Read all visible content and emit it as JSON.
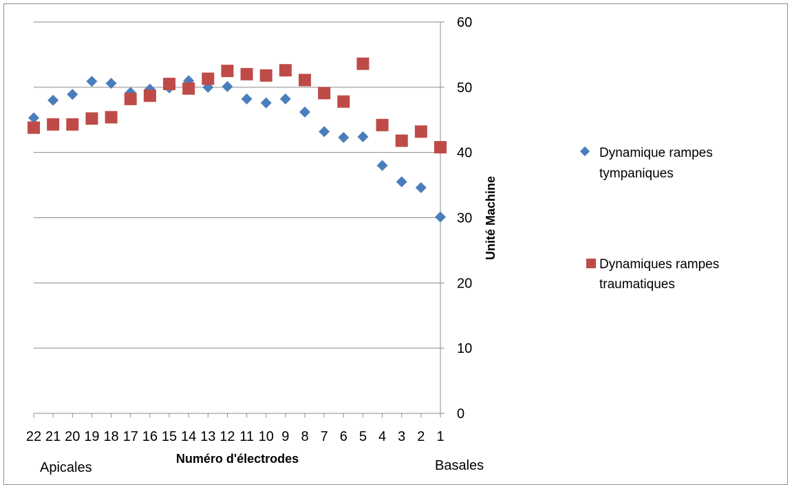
{
  "chart_data": {
    "type": "scatter",
    "title": "",
    "xlabel": "Numéro d'électrodes",
    "ylabel": "Unité Machine",
    "ylim": [
      0,
      60
    ],
    "yticks": [
      "0",
      "10",
      "20",
      "30",
      "40",
      "50",
      "60"
    ],
    "y_axis_position": "right",
    "grid": true,
    "legend_position": "right",
    "categories": [
      "22",
      "21",
      "20",
      "19",
      "18",
      "17",
      "16",
      "15",
      "14",
      "13",
      "12",
      "11",
      "10",
      "9",
      "8",
      "7",
      "6",
      "5",
      "4",
      "3",
      "2",
      "1"
    ],
    "x_end_labels": {
      "left": "Apicales",
      "right": "Basales"
    },
    "series": [
      {
        "name_lines": [
          "Dynamique rampes",
          "tympaniques"
        ],
        "marker": "diamond",
        "color": "#4a7ebb",
        "values": [
          45.3,
          48.0,
          48.9,
          50.9,
          50.6,
          49.2,
          49.7,
          49.9,
          51.0,
          50.0,
          50.1,
          48.2,
          47.6,
          48.2,
          46.2,
          43.2,
          42.3,
          42.4,
          38.0,
          35.5,
          34.6,
          30.1
        ]
      },
      {
        "name_lines": [
          "Dynamiques rampes",
          "traumatiques"
        ],
        "marker": "square",
        "color": "#be4b48",
        "values": [
          43.8,
          44.3,
          44.3,
          45.2,
          45.4,
          48.2,
          48.7,
          50.5,
          49.8,
          51.3,
          52.5,
          52.0,
          51.8,
          52.6,
          51.1,
          49.1,
          47.8,
          53.6,
          44.2,
          41.8,
          43.2,
          40.8
        ]
      }
    ]
  }
}
